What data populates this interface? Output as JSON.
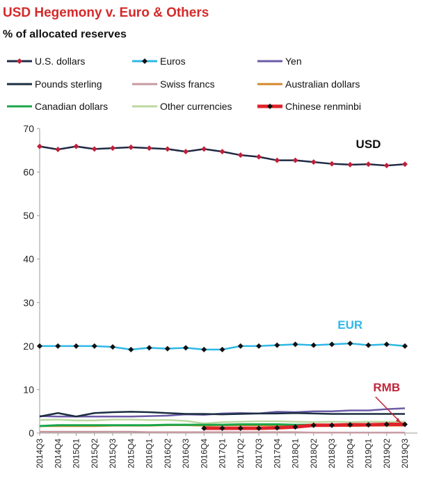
{
  "chart_data": {
    "type": "line",
    "title": "USD Hegemony v. Euro & Others",
    "subtitle": "% of allocated reserves",
    "xlabel": "",
    "ylabel": "",
    "ylim": [
      0,
      70
    ],
    "yticks": [
      0,
      10,
      20,
      30,
      40,
      50,
      60,
      70
    ],
    "grid": false,
    "legend_position": "top",
    "categories": [
      "2014Q3",
      "2014Q4",
      "2015Q1",
      "2015Q2",
      "2015Q3",
      "2015Q4",
      "2016Q1",
      "2016Q2",
      "2016Q3",
      "2016Q4",
      "2017Q1",
      "2017Q2",
      "2017Q3",
      "2017Q4",
      "2018Q1",
      "2018Q2",
      "2018Q3",
      "2018Q4",
      "2019Q1",
      "2019Q2",
      "2019Q3"
    ],
    "series": [
      {
        "name": "U.S. dollars",
        "color": "#1f2a44",
        "marker": "diamond",
        "marker_color": "#c0203a",
        "values": [
          65.9,
          65.2,
          65.9,
          65.3,
          65.5,
          65.7,
          65.5,
          65.3,
          64.7,
          65.3,
          64.7,
          63.9,
          63.5,
          62.7,
          62.7,
          62.3,
          61.9,
          61.7,
          61.8,
          61.5,
          61.8
        ]
      },
      {
        "name": "Euros",
        "color": "#2eb8e6",
        "marker": "diamond",
        "marker_color": "#111111",
        "values": [
          20.0,
          20.0,
          20.0,
          20.0,
          19.8,
          19.2,
          19.6,
          19.4,
          19.6,
          19.2,
          19.2,
          20.0,
          20.0,
          20.2,
          20.4,
          20.2,
          20.4,
          20.6,
          20.2,
          20.4,
          20.0
        ]
      },
      {
        "name": "Yen",
        "color": "#6b5aa6",
        "marker": "none",
        "values": [
          3.9,
          3.8,
          3.8,
          3.8,
          3.8,
          3.8,
          3.9,
          4.0,
          4.3,
          4.2,
          4.5,
          4.6,
          4.5,
          4.9,
          4.8,
          5.0,
          5.0,
          5.2,
          5.2,
          5.5,
          5.7
        ]
      },
      {
        "name": "Pounds sterling",
        "color": "#1a2e40",
        "marker": "none",
        "values": [
          3.8,
          4.6,
          3.8,
          4.6,
          4.8,
          4.9,
          4.8,
          4.6,
          4.4,
          4.4,
          4.3,
          4.4,
          4.5,
          4.5,
          4.6,
          4.5,
          4.4,
          4.4,
          4.4,
          4.4,
          4.4
        ]
      },
      {
        "name": "Swiss francs",
        "color": "#c79aa0",
        "marker": "none",
        "values": [
          0.3,
          0.3,
          0.3,
          0.3,
          0.3,
          0.3,
          0.2,
          0.2,
          0.2,
          0.2,
          0.2,
          0.2,
          0.2,
          0.2,
          0.2,
          0.1,
          0.1,
          0.1,
          0.1,
          0.1,
          0.1
        ]
      },
      {
        "name": "Australian dollars",
        "color": "#d4872a",
        "marker": "none",
        "values": [
          1.6,
          1.6,
          1.6,
          1.6,
          1.7,
          1.7,
          1.7,
          1.8,
          1.8,
          1.7,
          1.8,
          1.8,
          1.8,
          1.8,
          1.7,
          1.7,
          1.7,
          1.6,
          1.7,
          1.7,
          1.7
        ]
      },
      {
        "name": "Canadian dollars",
        "color": "#1aa64a",
        "marker": "none",
        "values": [
          1.6,
          1.8,
          1.8,
          1.8,
          1.8,
          1.8,
          1.8,
          1.9,
          1.9,
          1.9,
          1.9,
          2.0,
          2.0,
          2.0,
          1.9,
          1.9,
          1.9,
          1.8,
          1.8,
          1.9,
          1.9
        ]
      },
      {
        "name": "Other currencies",
        "color": "#bcd8a0",
        "marker": "none",
        "values": [
          3.0,
          3.1,
          2.9,
          2.9,
          3.1,
          3.1,
          3.0,
          3.0,
          2.8,
          2.2,
          2.5,
          2.6,
          2.7,
          2.7,
          2.6,
          2.5,
          2.6,
          2.5,
          2.6,
          2.6,
          2.6
        ]
      },
      {
        "name": "Chinese renminbi",
        "color": "#e0222a",
        "marker": "diamond",
        "marker_color": "#111111",
        "values": [
          null,
          null,
          null,
          null,
          null,
          null,
          null,
          null,
          null,
          1.1,
          1.1,
          1.1,
          1.1,
          1.2,
          1.4,
          1.8,
          1.8,
          1.9,
          1.9,
          2.0,
          2.0
        ]
      }
    ],
    "annotations": [
      {
        "text": "USD",
        "color": "#111111",
        "at_category": "2019Q1",
        "at_value": 65.5
      },
      {
        "text": "EUR",
        "color": "#2eb8e6",
        "at_category": "2018Q4",
        "at_value": 24.0
      },
      {
        "text": "RMB",
        "color": "#c0283a",
        "at_category": "2019Q2",
        "at_value": 9.6
      }
    ]
  }
}
